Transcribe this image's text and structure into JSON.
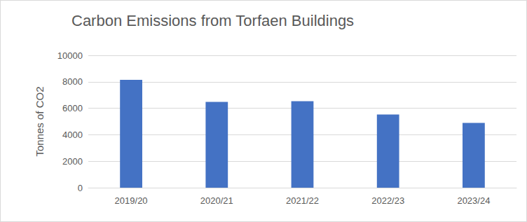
{
  "chart_data": {
    "type": "bar",
    "title": "Carbon Emissions from Torfaen Buildings",
    "ylabel": "Tonnes of CO2",
    "categories": [
      "2019/20",
      "2020/21",
      "2021/22",
      "2022/23",
      "2023/24"
    ],
    "values": [
      8150,
      6480,
      6530,
      5530,
      4900
    ],
    "color": "#4472c4",
    "ylim": [
      0,
      10000
    ],
    "yticks": [
      0,
      2000,
      4000,
      6000,
      8000,
      10000
    ],
    "grid": true
  }
}
